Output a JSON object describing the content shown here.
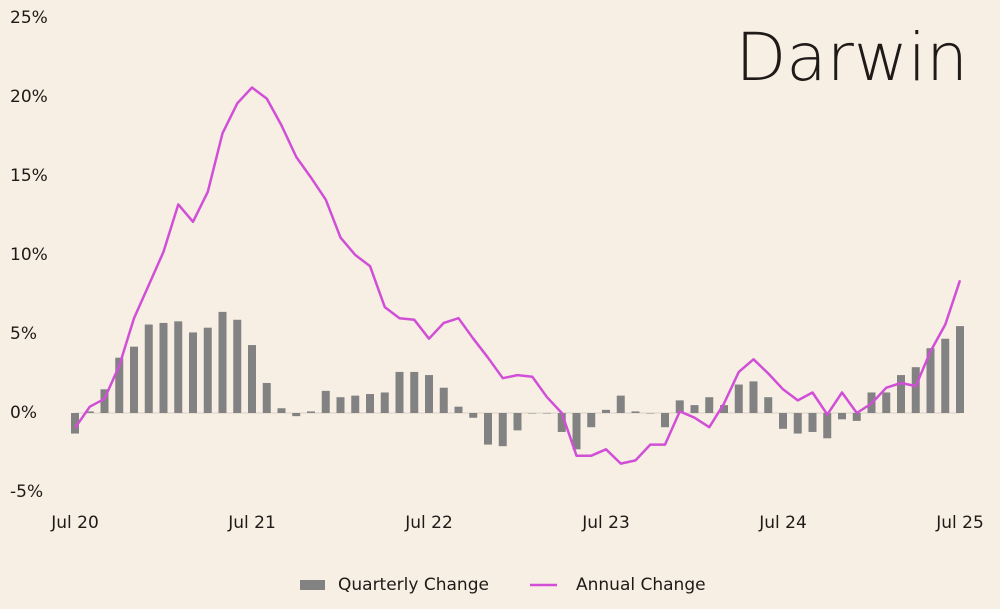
{
  "chart_data": {
    "type": "bar-line",
    "title": "Darwin",
    "categories": [
      "Jul 20",
      null,
      null,
      null,
      null,
      null,
      null,
      null,
      null,
      null,
      null,
      null,
      "Jul 21",
      null,
      null,
      null,
      null,
      null,
      null,
      null,
      null,
      null,
      null,
      null,
      "Jul 22",
      null,
      null,
      null,
      null,
      null,
      null,
      null,
      null,
      null,
      null,
      null,
      "Jul 23",
      null,
      null,
      null,
      null,
      null,
      null,
      null,
      null,
      null,
      null,
      null,
      "Jul 24",
      null,
      null,
      null,
      null,
      null,
      null,
      null,
      null,
      null,
      null,
      null,
      "Jul 25"
    ],
    "series": [
      {
        "name": "Quarterly Change",
        "type": "bar",
        "color": "#828282",
        "values": [
          -1.3,
          0.1,
          1.5,
          3.5,
          4.2,
          5.6,
          5.7,
          5.8,
          5.1,
          5.4,
          6.4,
          5.9,
          4.3,
          1.9,
          0.3,
          -0.2,
          0.1,
          1.4,
          1.0,
          1.1,
          1.2,
          1.3,
          2.6,
          2.6,
          2.4,
          1.6,
          0.4,
          -0.3,
          -2.0,
          -2.1,
          -1.1,
          0,
          0,
          -1.2,
          -2.3,
          -0.9,
          0.2,
          1.1,
          0.1,
          0,
          -0.9,
          0.8,
          0.5,
          1.0,
          0.5,
          1.8,
          2.0,
          1.0,
          -1.0,
          -1.3,
          -1.2,
          -1.6,
          -0.4,
          -0.5,
          1.3,
          1.3,
          2.4,
          2.9,
          4.1,
          4.7,
          5.5
        ]
      },
      {
        "name": "Annual Change",
        "type": "line",
        "color": "#d14fd6",
        "values": [
          -0.95,
          0.4,
          0.9,
          3.0,
          6.0,
          8.1,
          10.2,
          13.2,
          12.1,
          14.0,
          17.7,
          19.6,
          20.6,
          19.9,
          18.2,
          16.2,
          14.9,
          13.5,
          11.1,
          10.0,
          9.3,
          6.7,
          6.0,
          5.9,
          4.7,
          5.7,
          6.0,
          4.7,
          3.5,
          2.2,
          2.4,
          2.3,
          1.0,
          0,
          -2.7,
          -2.7,
          -2.3,
          -3.2,
          -3.0,
          -2.0,
          -2.0,
          0.1,
          -0.3,
          -0.9,
          0.6,
          2.6,
          3.4,
          2.5,
          1.5,
          0.8,
          1.3,
          -0.1,
          1.3,
          0,
          0.6,
          1.6,
          1.9,
          1.7,
          3.9,
          5.6,
          8.4
        ]
      }
    ],
    "ylim": [
      -5,
      25
    ],
    "yticks": [
      {
        "value": -5,
        "label": "-5%"
      },
      {
        "value": 0,
        "label": "0%"
      },
      {
        "value": 5,
        "label": "5%"
      },
      {
        "value": 10,
        "label": "10%"
      },
      {
        "value": 15,
        "label": "15%"
      },
      {
        "value": 20,
        "label": "20%"
      },
      {
        "value": 25,
        "label": "25%"
      }
    ],
    "legend": "bottom"
  }
}
